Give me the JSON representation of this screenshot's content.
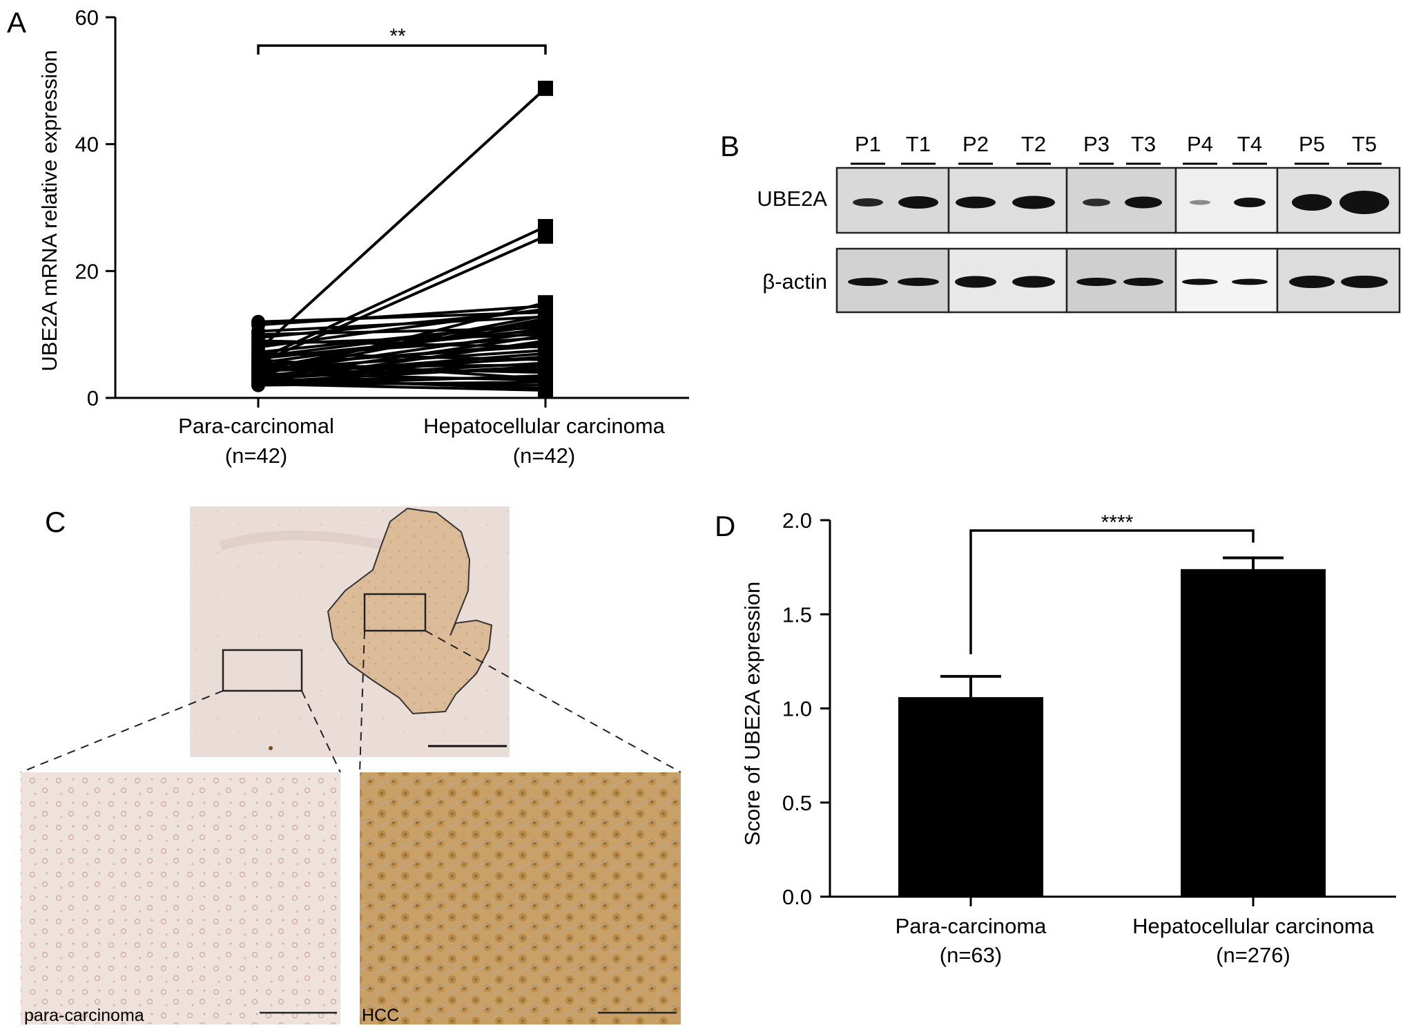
{
  "panels": {
    "A": {
      "letter": "A"
    },
    "B": {
      "letter": "B"
    },
    "C": {
      "letter": "C"
    },
    "D": {
      "letter": "D"
    }
  },
  "chart_data": [
    {
      "panel": "A",
      "type": "line",
      "ylabel": "UBE2A mRNA relative expression",
      "xlabel": "",
      "ylim": [
        0,
        60
      ],
      "yticks": [
        "0",
        "20",
        "40",
        "60"
      ],
      "categories": [
        "Para-carcinomal",
        "Hepatocellular carcinoma"
      ],
      "category_n": [
        "(n=42)",
        "(n=42)"
      ],
      "significance": "**",
      "paired_values": [
        [
          7.5,
          48.8
        ],
        [
          6.0,
          27.0
        ],
        [
          5.5,
          25.5
        ],
        [
          12.0,
          13.5
        ],
        [
          10.0,
          11.0
        ],
        [
          11.5,
          14.5
        ],
        [
          3.5,
          15.0
        ],
        [
          4.0,
          12.5
        ],
        [
          8.5,
          10.0
        ],
        [
          6.5,
          9.5
        ],
        [
          5.0,
          8.5
        ],
        [
          4.5,
          7.5
        ],
        [
          3.0,
          6.5
        ],
        [
          2.5,
          5.0
        ],
        [
          3.5,
          4.5
        ],
        [
          2.0,
          3.5
        ],
        [
          2.5,
          2.0
        ],
        [
          3.0,
          1.5
        ],
        [
          6.0,
          3.0
        ],
        [
          7.0,
          6.0
        ],
        [
          9.0,
          8.0
        ],
        [
          4.0,
          10.5
        ],
        [
          5.5,
          11.5
        ],
        [
          2.5,
          9.0
        ],
        [
          3.5,
          7.0
        ],
        [
          6.5,
          12.0
        ],
        [
          4.5,
          13.0
        ],
        [
          5.0,
          4.0
        ],
        [
          2.0,
          2.5
        ],
        [
          3.0,
          5.5
        ],
        [
          8.0,
          14.0
        ],
        [
          10.5,
          12.8
        ],
        [
          2.2,
          1.2
        ],
        [
          4.2,
          6.2
        ],
        [
          5.2,
          8.2
        ],
        [
          3.2,
          9.8
        ],
        [
          6.2,
          10.8
        ],
        [
          2.8,
          3.2
        ],
        [
          7.2,
          11.8
        ],
        [
          4.8,
          5.2
        ],
        [
          9.5,
          13.8
        ],
        [
          3.8,
          2.8
        ]
      ]
    },
    {
      "panel": "D",
      "type": "bar",
      "ylabel": "Score of UBE2A expression",
      "xlabel": "",
      "ylim": [
        0,
        2.0
      ],
      "yticks": [
        "0.0",
        "0.5",
        "1.0",
        "1.5",
        "2.0"
      ],
      "categories": [
        "Para-carcinoma",
        "Hepatocellular carcinoma"
      ],
      "category_n": [
        "(n=63)",
        "(n=276)"
      ],
      "values": [
        1.06,
        1.74
      ],
      "errors": [
        0.11,
        0.06
      ],
      "significance": "****"
    }
  ],
  "blot": {
    "lanes": [
      "P1",
      "T1",
      "P2",
      "T2",
      "P3",
      "T3",
      "P4",
      "T4",
      "P5",
      "T5"
    ],
    "rows": [
      "UBE2A",
      "β-actin"
    ]
  },
  "histology": {
    "labels": [
      "para-carcinoma",
      "HCC"
    ]
  },
  "colors": {
    "line": "#000000",
    "bar": "#000000",
    "tissue_bg": "#e9d9d3",
    "tumor": "#d8b895",
    "hcc_stain": "#c69b5a"
  }
}
